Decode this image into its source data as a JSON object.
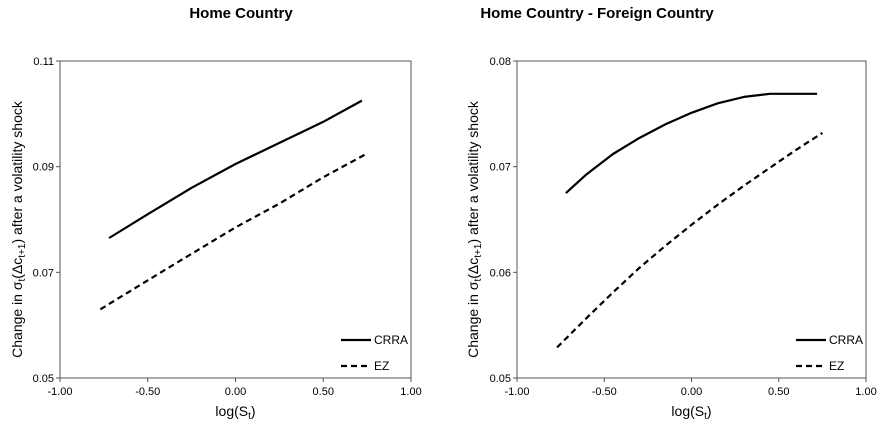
{
  "chart_data": [
    {
      "type": "line",
      "title": "Home Country",
      "xlabel": "log(S",
      "xlabel_sub": "t",
      "xlabel_end": ")",
      "ylabel_parts": [
        "Change in σ",
        "t",
        "(Δc",
        "t+1",
        ") after a volatility shock"
      ],
      "xlim": [
        -1.0,
        1.0
      ],
      "ylim": [
        0.05,
        0.11
      ],
      "xticks": [
        "-1.00",
        "-0.50",
        "0.00",
        "0.50",
        "1.00"
      ],
      "yticks": [
        "0.05",
        "0.07",
        "0.09",
        "0.11"
      ],
      "grid": false,
      "legend_position": "bottom-right",
      "series": [
        {
          "name": "CRRA",
          "style": "solid",
          "color": "#000000",
          "x": [
            -0.72,
            -0.5,
            -0.25,
            0.0,
            0.25,
            0.5,
            0.72
          ],
          "y": [
            0.0765,
            0.081,
            0.086,
            0.0905,
            0.0945,
            0.0985,
            0.1025
          ]
        },
        {
          "name": "EZ",
          "style": "dashed",
          "color": "#000000",
          "x": [
            -0.77,
            -0.5,
            -0.25,
            0.0,
            0.25,
            0.5,
            0.75
          ],
          "y": [
            0.063,
            0.0685,
            0.0735,
            0.0785,
            0.083,
            0.088,
            0.0925
          ]
        }
      ]
    },
    {
      "type": "line",
      "title": "Home Country - Foreign Country",
      "xlabel": "log(S",
      "xlabel_sub": "t",
      "xlabel_end": ")",
      "ylabel_parts": [
        "Change in σ",
        "t",
        "(Δc",
        "t+1",
        ") after a volatility shock"
      ],
      "xlim": [
        -1.0,
        1.0
      ],
      "ylim": [
        0.05,
        0.08
      ],
      "xticks": [
        "-1.00",
        "-0.50",
        "0.00",
        "0.50",
        "1.00"
      ],
      "yticks": [
        "0.05",
        "0.06",
        "0.07",
        "0.08"
      ],
      "grid": false,
      "legend_position": "bottom-right",
      "series": [
        {
          "name": "CRRA",
          "style": "solid",
          "color": "#000000",
          "x": [
            -0.72,
            -0.6,
            -0.45,
            -0.3,
            -0.15,
            0.0,
            0.15,
            0.3,
            0.45,
            0.55,
            0.72
          ],
          "y": [
            0.0675,
            0.0693,
            0.0712,
            0.0727,
            0.074,
            0.0751,
            0.076,
            0.0766,
            0.0769,
            0.0769,
            0.0769
          ]
        },
        {
          "name": "EZ",
          "style": "dashed",
          "color": "#000000",
          "x": [
            -0.77,
            -0.6,
            -0.45,
            -0.3,
            -0.15,
            0.0,
            0.15,
            0.3,
            0.45,
            0.6,
            0.75
          ],
          "y": [
            0.0529,
            0.0557,
            0.0581,
            0.0604,
            0.0625,
            0.0645,
            0.0664,
            0.0682,
            0.0699,
            0.0716,
            0.0732
          ]
        }
      ]
    }
  ]
}
